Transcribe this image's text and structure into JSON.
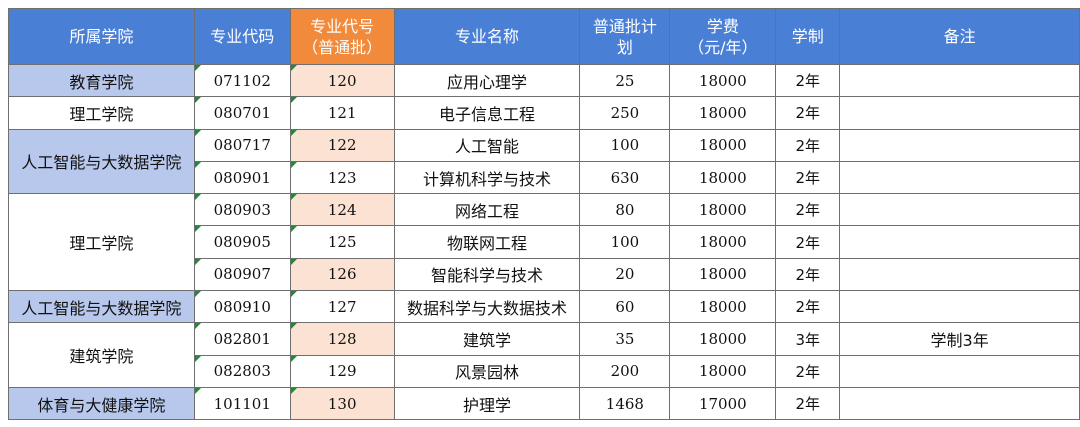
{
  "headers": {
    "college": "所属学院",
    "code": "专业代码",
    "code2_line1": "专业代号",
    "code2_line2": "（普通批）",
    "name": "专业名称",
    "quota_line1": "普通批计",
    "quota_line2": "划",
    "fee_line1": "学费",
    "fee_line2": "（元/年）",
    "duration": "学制",
    "note": "备注"
  },
  "colors": {
    "header_bg": "#4a7fd6",
    "header_highlight": "#f28a3c",
    "college_highlight": "#b8c8ec",
    "code2_highlight": "#fbe2d2"
  },
  "groups": [
    {
      "college": "教育学院",
      "highlight": true,
      "span": 1
    },
    {
      "college": "理工学院",
      "highlight": false,
      "span": 1
    },
    {
      "college": "人工智能与大数据学院",
      "highlight": true,
      "span": 2
    },
    {
      "college": "理工学院",
      "highlight": false,
      "span": 3
    },
    {
      "college": "人工智能与大数据学院",
      "highlight": true,
      "span": 1
    },
    {
      "college": "建筑学院",
      "highlight": false,
      "span": 2
    },
    {
      "college": "体育与大健康学院",
      "highlight": true,
      "span": 1
    }
  ],
  "rows": [
    {
      "code": "071102",
      "code2": "120",
      "name": "应用心理学",
      "quota": "25",
      "fee": "18000",
      "duration": "2年",
      "note": "",
      "code2_highlight": true
    },
    {
      "code": "080701",
      "code2": "121",
      "name": "电子信息工程",
      "quota": "250",
      "fee": "18000",
      "duration": "2年",
      "note": "",
      "code2_highlight": false
    },
    {
      "code": "080717",
      "code2": "122",
      "name": "人工智能",
      "quota": "100",
      "fee": "18000",
      "duration": "2年",
      "note": "",
      "code2_highlight": true
    },
    {
      "code": "080901",
      "code2": "123",
      "name": "计算机科学与技术",
      "quota": "630",
      "fee": "18000",
      "duration": "2年",
      "note": "",
      "code2_highlight": false
    },
    {
      "code": "080903",
      "code2": "124",
      "name": "网络工程",
      "quota": "80",
      "fee": "18000",
      "duration": "2年",
      "note": "",
      "code2_highlight": true
    },
    {
      "code": "080905",
      "code2": "125",
      "name": "物联网工程",
      "quota": "100",
      "fee": "18000",
      "duration": "2年",
      "note": "",
      "code2_highlight": false
    },
    {
      "code": "080907",
      "code2": "126",
      "name": "智能科学与技术",
      "quota": "20",
      "fee": "18000",
      "duration": "2年",
      "note": "",
      "code2_highlight": true
    },
    {
      "code": "080910",
      "code2": "127",
      "name": "数据科学与大数据技术",
      "quota": "60",
      "fee": "18000",
      "duration": "2年",
      "note": "",
      "code2_highlight": false
    },
    {
      "code": "082801",
      "code2": "128",
      "name": "建筑学",
      "quota": "35",
      "fee": "18000",
      "duration": "3年",
      "note": "学制3年",
      "code2_highlight": true
    },
    {
      "code": "082803",
      "code2": "129",
      "name": "风景园林",
      "quota": "200",
      "fee": "18000",
      "duration": "2年",
      "note": "",
      "code2_highlight": false
    },
    {
      "code": "101101",
      "code2": "130",
      "name": "护理学",
      "quota": "1468",
      "fee": "17000",
      "duration": "2年",
      "note": "",
      "code2_highlight": true
    }
  ]
}
